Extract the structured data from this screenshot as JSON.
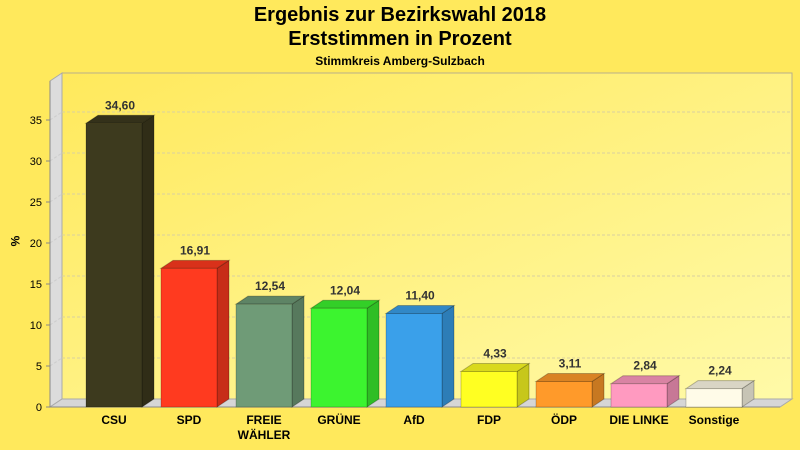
{
  "chart_data": {
    "type": "bar",
    "title": "Ergebnis zur Bezirkswahl 2018",
    "title_line2": "Erststimmen in Prozent",
    "subtitle": "Stimmkreis Amberg-Sulzbach",
    "xlabel": "",
    "ylabel": "%",
    "ylim": [
      0,
      35
    ],
    "yticks": [
      0,
      5,
      10,
      15,
      20,
      25,
      30,
      35
    ],
    "grid": true,
    "legend": "none",
    "style": "3d",
    "categories": [
      "CSU",
      "SPD",
      "FREIE WÄHLER",
      "GRÜNE",
      "AfD",
      "FDP",
      "ÖDP",
      "DIE LINKE",
      "Sonstige"
    ],
    "values": [
      34.6,
      16.91,
      12.54,
      12.04,
      11.4,
      4.33,
      3.11,
      2.84,
      2.24
    ],
    "value_labels": [
      "34,60",
      "16,91",
      "12,54",
      "12,04",
      "11,40",
      "4,33",
      "3,11",
      "2,84",
      "2,24"
    ],
    "colors": [
      "#3d3a1e",
      "#ff3a1f",
      "#6f9b77",
      "#3cf42f",
      "#3aa0ea",
      "#ffff22",
      "#ff9a2a",
      "#ff9ac0",
      "#fffbe8"
    ]
  }
}
